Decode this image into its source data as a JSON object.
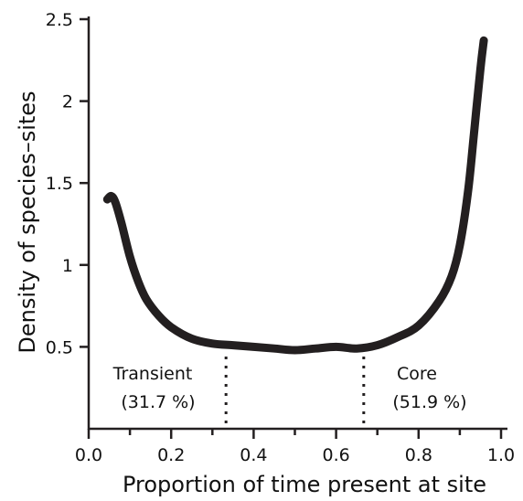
{
  "chart_data": {
    "type": "line",
    "title": "",
    "xlabel": "Proportion of time present at site",
    "ylabel": "Density of species–sites",
    "xlim": [
      0,
      1
    ],
    "ylim": [
      0,
      2.5
    ],
    "x_ticks": [
      {
        "value": 0,
        "label": "0.0"
      },
      {
        "value": 0.2,
        "label": "0.2"
      },
      {
        "value": 0.4,
        "label": "0.4"
      },
      {
        "value": 0.6,
        "label": "0.6"
      },
      {
        "value": 0.8,
        "label": "0.8"
      },
      {
        "value": 1,
        "label": "1.0"
      }
    ],
    "x_minor_ticks": [
      0.1,
      0.3,
      0.5,
      0.7,
      0.9
    ],
    "y_ticks": [
      {
        "value": 0.5,
        "label": "0.5"
      },
      {
        "value": 1,
        "label": "1"
      },
      {
        "value": 1.5,
        "label": "1.5"
      },
      {
        "value": 2,
        "label": "2"
      },
      {
        "value": 2.5,
        "label": "2.5"
      }
    ],
    "grid": false,
    "series": [
      {
        "color": "#231f20",
        "x": [
          0.045,
          0.055,
          0.065,
          0.08,
          0.1,
          0.12,
          0.14,
          0.17,
          0.2,
          0.25,
          0.3,
          0.35,
          0.4,
          0.45,
          0.5,
          0.55,
          0.6,
          0.65,
          0.7,
          0.75,
          0.8,
          0.85,
          0.88,
          0.9,
          0.92,
          0.935,
          0.95,
          0.958
        ],
        "y": [
          1.4,
          1.42,
          1.38,
          1.25,
          1.05,
          0.9,
          0.79,
          0.69,
          0.62,
          0.55,
          0.52,
          0.51,
          0.5,
          0.49,
          0.48,
          0.49,
          0.5,
          0.49,
          0.51,
          0.56,
          0.63,
          0.78,
          0.93,
          1.12,
          1.45,
          1.82,
          2.2,
          2.37
        ]
      }
    ],
    "thresholds": [
      0.333,
      0.667
    ],
    "annotations": [
      {
        "name": "transient",
        "line1": "Transient",
        "line2": "(31.7 %)"
      },
      {
        "name": "core",
        "line1": "Core",
        "line2": "(51.9 %)"
      }
    ]
  }
}
